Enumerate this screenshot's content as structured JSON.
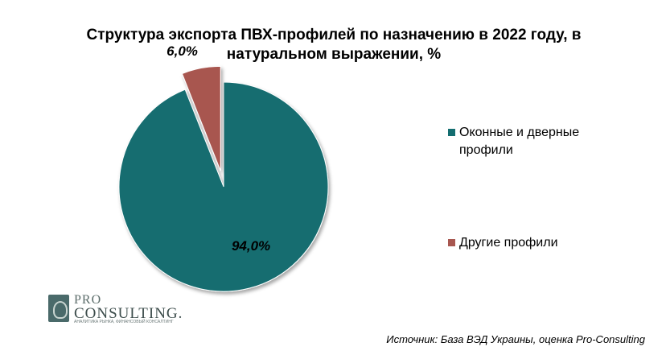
{
  "chart_data": {
    "type": "pie",
    "title": "Структура экспорта ПВХ-профилей по назначению в 2022 году, в натуральном выражении, %",
    "title_lines": [
      "Структура экспорта ПВХ-профилей по назначению в 2022 году, в",
      "натуральном выражении, %"
    ],
    "slices": [
      {
        "name": "Оконные и дверные профили",
        "legend_lines": [
          "Оконные и дверные",
          "профили"
        ],
        "value": 94.0,
        "label": "94,0%",
        "color": "#136D70",
        "exploded": false
      },
      {
        "name": "Другие профили",
        "legend_lines": [
          "Другие профили"
        ],
        "value": 6.0,
        "label": "6,0%",
        "color": "#A85750",
        "exploded": true
      }
    ],
    "legend_position": "right"
  },
  "logo": {
    "pro": "PRO",
    "consulting": "CONSULTING.",
    "tagline": "АНАЛИТИКА РЫНКА, ФИНАНСОВЫЙ КОНСАЛТИНГ"
  },
  "source": "Источник: База ВЭД Украины, оценка Pro-Consulting"
}
